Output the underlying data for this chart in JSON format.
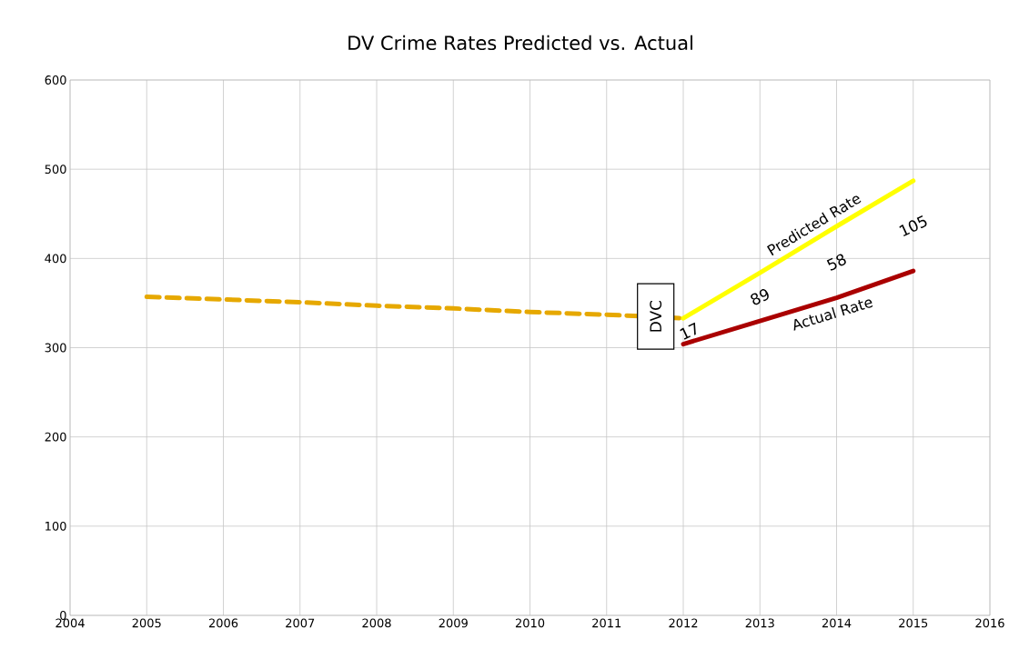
{
  "chart_data": {
    "type": "line",
    "title": "DV Crime Rates Predicted vs. Actual",
    "grid": true,
    "legend": false,
    "xlim": [
      2004,
      2016
    ],
    "xticks": [
      2004,
      2005,
      2006,
      2007,
      2008,
      2009,
      2010,
      2011,
      2012,
      2013,
      2014,
      2015,
      2016
    ],
    "ylim": [
      0,
      600
    ],
    "yticks": [
      0,
      100,
      200,
      300,
      400,
      500,
      600
    ],
    "series": [
      {
        "color": "#e6a800",
        "line_style": "dashed",
        "x": [
          2005,
          2006,
          2007,
          2008,
          2009,
          2010,
          2011,
          2012
        ],
        "values": [
          357,
          354,
          351,
          347,
          344,
          340,
          337,
          333
        ]
      },
      {
        "name": "Predicted Rate",
        "color": "#ffff00",
        "line_style": "solid",
        "x": [
          2012,
          2013,
          2014,
          2015
        ],
        "values": [
          333,
          384,
          436,
          487
        ]
      },
      {
        "name": "Actual Rate",
        "color": "#aa0000",
        "line_style": "solid",
        "x": [
          2012,
          2013,
          2014,
          2015
        ],
        "values": [
          304,
          330,
          356,
          386
        ]
      }
    ],
    "annotations": [
      {
        "text": "DVC",
        "x": 2011.64,
        "y": 335
      },
      "17",
      "89",
      "58",
      "105"
    ]
  }
}
